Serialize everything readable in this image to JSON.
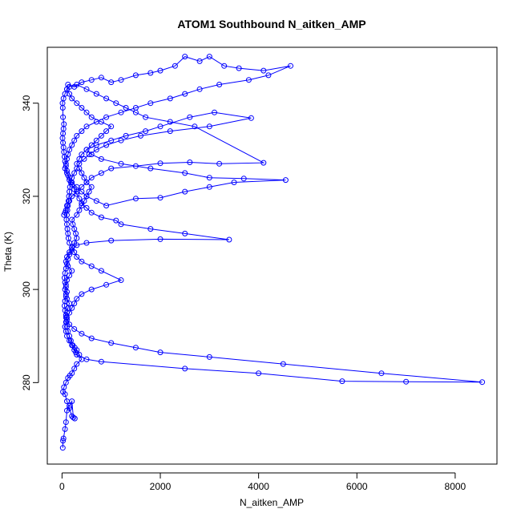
{
  "chart_data": {
    "type": "scatter",
    "mode": "lines+markers",
    "title": "ATOM1 Southbound N_aitken_AMP",
    "xlabel": "N_aitken_AMP",
    "ylabel": "Theta (K)",
    "xlim": [
      -300,
      8850
    ],
    "ylim": [
      262.5,
      352
    ],
    "xticks": [
      0,
      2000,
      4000,
      6000,
      8000
    ],
    "yticks": [
      280,
      300,
      320,
      340
    ],
    "color": "#0000ff",
    "marker": "open-circle",
    "grid": false,
    "series": [
      {
        "points": [
          [
            15,
            266
          ],
          [
            20,
            267.5
          ],
          [
            30,
            268
          ],
          [
            60,
            270
          ],
          [
            80,
            271.5
          ],
          [
            100,
            274
          ],
          [
            150,
            275
          ],
          [
            200,
            276
          ],
          [
            230,
            272.5
          ],
          [
            260,
            272.3
          ],
          [
            200,
            272.8
          ],
          [
            150,
            274.5
          ],
          [
            100,
            276
          ],
          [
            60,
            277.5
          ],
          [
            20,
            278
          ],
          [
            40,
            279
          ],
          [
            80,
            280
          ],
          [
            120,
            281
          ],
          [
            160,
            281.5
          ],
          [
            200,
            282
          ],
          [
            250,
            283
          ],
          [
            300,
            284
          ],
          [
            400,
            285
          ],
          [
            350,
            286
          ],
          [
            300,
            287
          ],
          [
            280,
            286.5
          ],
          [
            260,
            287.5
          ],
          [
            220,
            288
          ],
          [
            180,
            289
          ],
          [
            150,
            290
          ],
          [
            120,
            291
          ],
          [
            100,
            292
          ],
          [
            90,
            293
          ],
          [
            80,
            294
          ],
          [
            100,
            295
          ],
          [
            120,
            296
          ],
          [
            150,
            297
          ],
          [
            100,
            298
          ],
          [
            80,
            299
          ],
          [
            60,
            300
          ],
          [
            80,
            301
          ],
          [
            100,
            302
          ],
          [
            150,
            303
          ],
          [
            200,
            304
          ],
          [
            120,
            305
          ],
          [
            80,
            306
          ],
          [
            100,
            307
          ],
          [
            150,
            308
          ],
          [
            200,
            309
          ],
          [
            250,
            310
          ],
          [
            300,
            311
          ],
          [
            280,
            312
          ],
          [
            250,
            313
          ],
          [
            220,
            314
          ],
          [
            200,
            315
          ],
          [
            300,
            316
          ],
          [
            350,
            317
          ],
          [
            400,
            318
          ],
          [
            450,
            319
          ],
          [
            500,
            320
          ],
          [
            550,
            321
          ],
          [
            600,
            322
          ],
          [
            500,
            323
          ],
          [
            450,
            324
          ],
          [
            400,
            325
          ],
          [
            350,
            326
          ],
          [
            300,
            327
          ],
          [
            350,
            328
          ],
          [
            400,
            329
          ],
          [
            500,
            330
          ],
          [
            600,
            331
          ],
          [
            700,
            332
          ],
          [
            800,
            333
          ],
          [
            900,
            334
          ],
          [
            1000,
            335
          ],
          [
            800,
            336
          ],
          [
            600,
            337
          ],
          [
            500,
            338
          ],
          [
            400,
            339
          ],
          [
            300,
            340
          ],
          [
            200,
            341
          ],
          [
            150,
            342
          ],
          [
            100,
            343
          ],
          [
            120,
            344
          ],
          [
            250,
            343.5
          ],
          [
            400,
            344.5
          ],
          [
            600,
            345
          ],
          [
            800,
            345.5
          ],
          [
            1000,
            344.5
          ],
          [
            1200,
            345
          ],
          [
            1500,
            346
          ],
          [
            1800,
            346.5
          ],
          [
            2000,
            347
          ],
          [
            2300,
            348
          ],
          [
            2500,
            350
          ],
          [
            2800,
            349
          ],
          [
            3000,
            350
          ],
          [
            3300,
            348
          ],
          [
            3600,
            347.5
          ],
          [
            4100,
            347
          ],
          [
            4650,
            348
          ],
          [
            4200,
            346
          ],
          [
            3800,
            345
          ],
          [
            3200,
            344
          ],
          [
            2800,
            343
          ],
          [
            2500,
            342
          ],
          [
            2200,
            341
          ],
          [
            1800,
            340
          ],
          [
            1500,
            339
          ],
          [
            1200,
            338
          ],
          [
            900,
            337
          ],
          [
            700,
            336
          ],
          [
            500,
            335
          ],
          [
            400,
            334
          ],
          [
            300,
            333
          ],
          [
            250,
            332
          ],
          [
            200,
            331
          ],
          [
            150,
            330
          ],
          [
            120,
            329
          ],
          [
            100,
            328
          ],
          [
            80,
            327
          ],
          [
            60,
            326
          ],
          [
            100,
            325
          ],
          [
            150,
            324
          ],
          [
            200,
            323
          ],
          [
            300,
            322
          ],
          [
            400,
            321
          ],
          [
            500,
            320
          ],
          [
            700,
            319
          ],
          [
            900,
            318
          ],
          [
            1500,
            319.5
          ],
          [
            2000,
            319.7
          ],
          [
            2500,
            321
          ],
          [
            3000,
            322
          ],
          [
            3500,
            323
          ],
          [
            4550,
            323.5
          ],
          [
            3700,
            323.8
          ],
          [
            3000,
            324
          ],
          [
            2500,
            325
          ],
          [
            1800,
            326
          ],
          [
            1200,
            327
          ],
          [
            800,
            328
          ],
          [
            600,
            329
          ],
          [
            500,
            330
          ],
          [
            700,
            331
          ],
          [
            1000,
            332
          ],
          [
            1300,
            333
          ],
          [
            1700,
            334
          ],
          [
            2000,
            335
          ],
          [
            2600,
            337
          ],
          [
            3100,
            338
          ],
          [
            3850,
            336.8
          ],
          [
            3000,
            335
          ],
          [
            2200,
            334
          ],
          [
            1600,
            333
          ],
          [
            1200,
            332
          ],
          [
            900,
            331
          ],
          [
            700,
            330
          ],
          [
            550,
            329
          ],
          [
            450,
            328
          ],
          [
            350,
            327
          ],
          [
            300,
            326
          ],
          [
            250,
            325
          ],
          [
            200,
            324
          ],
          [
            180,
            323
          ],
          [
            160,
            322
          ],
          [
            150,
            321
          ],
          [
            140,
            320
          ],
          [
            130,
            319
          ],
          [
            120,
            318
          ],
          [
            110,
            317
          ],
          [
            100,
            316
          ],
          [
            90,
            315
          ],
          [
            100,
            314
          ],
          [
            110,
            313
          ],
          [
            120,
            312
          ],
          [
            130,
            311
          ],
          [
            150,
            310
          ],
          [
            200,
            309
          ],
          [
            250,
            308
          ],
          [
            300,
            307
          ],
          [
            400,
            306
          ],
          [
            600,
            305
          ],
          [
            800,
            304
          ],
          [
            1200,
            302
          ],
          [
            900,
            301
          ],
          [
            600,
            300
          ],
          [
            400,
            299
          ],
          [
            300,
            298
          ],
          [
            250,
            297
          ],
          [
            200,
            296
          ],
          [
            150,
            295
          ],
          [
            100,
            294
          ],
          [
            80,
            293
          ],
          [
            60,
            292
          ],
          [
            80,
            291
          ],
          [
            100,
            290
          ],
          [
            150,
            289
          ],
          [
            200,
            288
          ],
          [
            250,
            287
          ],
          [
            300,
            286
          ],
          [
            500,
            285
          ],
          [
            800,
            284.5
          ],
          [
            2500,
            283
          ],
          [
            4000,
            282
          ],
          [
            5700,
            280.3
          ],
          [
            7000,
            280.2
          ],
          [
            8550,
            280.1
          ],
          [
            6500,
            282
          ],
          [
            4500,
            284
          ],
          [
            3000,
            285.5
          ],
          [
            2000,
            286.5
          ],
          [
            1500,
            287.5
          ],
          [
            1000,
            288.5
          ],
          [
            600,
            289.5
          ],
          [
            400,
            290.5
          ],
          [
            250,
            291.5
          ],
          [
            150,
            292.5
          ],
          [
            100,
            293.5
          ],
          [
            80,
            294.5
          ],
          [
            60,
            295.5
          ],
          [
            50,
            296.5
          ],
          [
            60,
            297.5
          ],
          [
            80,
            298.5
          ],
          [
            100,
            299.5
          ],
          [
            80,
            300.5
          ],
          [
            60,
            301.5
          ],
          [
            50,
            302.5
          ],
          [
            60,
            303.5
          ],
          [
            80,
            304.5
          ],
          [
            100,
            305.5
          ],
          [
            120,
            306.5
          ],
          [
            150,
            307.5
          ],
          [
            200,
            308.5
          ],
          [
            300,
            309.5
          ],
          [
            500,
            310
          ],
          [
            1000,
            310.5
          ],
          [
            2000,
            310.8
          ],
          [
            3400,
            310.7
          ],
          [
            2500,
            312
          ],
          [
            1800,
            313
          ],
          [
            1200,
            314
          ],
          [
            1100,
            314.8
          ],
          [
            800,
            315.5
          ],
          [
            600,
            316.5
          ],
          [
            500,
            317.5
          ],
          [
            400,
            318.5
          ],
          [
            350,
            319.5
          ],
          [
            300,
            320.5
          ],
          [
            250,
            321.5
          ],
          [
            200,
            322.5
          ],
          [
            150,
            323.5
          ],
          [
            120,
            324.5
          ],
          [
            100,
            325.5
          ],
          [
            80,
            326.5
          ],
          [
            60,
            327.5
          ],
          [
            50,
            328.5
          ],
          [
            40,
            329.5
          ],
          [
            30,
            330.5
          ],
          [
            20,
            331.5
          ],
          [
            10,
            332.5
          ],
          [
            20,
            333.5
          ],
          [
            30,
            334.5
          ],
          [
            40,
            335.5
          ],
          [
            20,
            337
          ],
          [
            15,
            339
          ],
          [
            10,
            340
          ],
          [
            30,
            341
          ],
          [
            60,
            342
          ],
          [
            100,
            343
          ],
          [
            150,
            343.5
          ],
          [
            300,
            344
          ],
          [
            500,
            343
          ],
          [
            700,
            342
          ],
          [
            900,
            341
          ],
          [
            1100,
            340
          ],
          [
            1300,
            339
          ],
          [
            1500,
            338
          ],
          [
            1700,
            337
          ],
          [
            2200,
            336
          ],
          [
            2700,
            335
          ],
          [
            4100,
            327.2
          ],
          [
            3200,
            327
          ],
          [
            2600,
            327.3
          ],
          [
            2000,
            327.1
          ],
          [
            1500,
            326.5
          ],
          [
            1000,
            326
          ],
          [
            800,
            325
          ],
          [
            600,
            324
          ],
          [
            500,
            323
          ],
          [
            400,
            322
          ],
          [
            300,
            321
          ],
          [
            200,
            320
          ],
          [
            150,
            319
          ],
          [
            100,
            318
          ],
          [
            80,
            317
          ],
          [
            60,
            316.5
          ],
          [
            40,
            316
          ]
        ]
      }
    ]
  }
}
